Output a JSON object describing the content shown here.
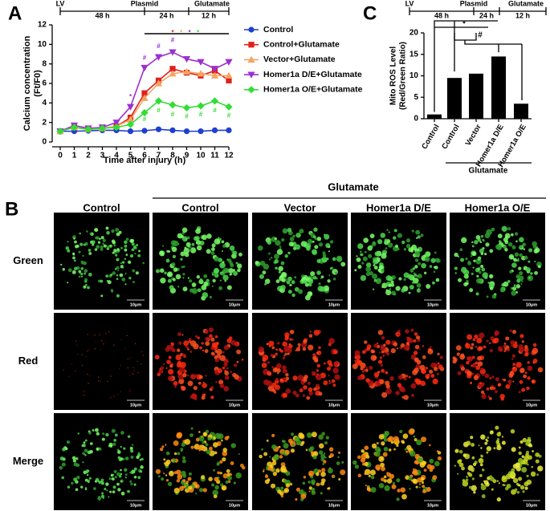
{
  "panel_labels": [
    "A",
    "B",
    "C"
  ],
  "chart_data": [
    {
      "type": "line",
      "timeline": [
        "LV",
        "48 h",
        "Plasmid",
        "24 h",
        "Glutamate",
        "12 h"
      ],
      "xlabel": "Time after injury (h)",
      "ylabel": [
        "Calcium concentration",
        "(Ft/F0)"
      ],
      "x": [
        0,
        1,
        2,
        3,
        4,
        5,
        6,
        7,
        8,
        9,
        10,
        11,
        12
      ],
      "xlim": [
        0,
        12
      ],
      "xticks": [
        0,
        1,
        2,
        3,
        4,
        5,
        6,
        7,
        8,
        9,
        10,
        11,
        12
      ],
      "ylim": [
        0,
        12
      ],
      "yticks": [
        0,
        2,
        4,
        6,
        8,
        10,
        12
      ],
      "series": [
        {
          "name": "Control",
          "color": "#1f3fd0",
          "marker": "circle",
          "values": [
            1.1,
            1.1,
            1.15,
            1.2,
            1.2,
            1.1,
            1.15,
            1.3,
            1.2,
            1.1,
            1.1,
            1.2,
            1.2
          ]
        },
        {
          "name": "Control+Glutamate",
          "color": "#e0201b",
          "marker": "square",
          "values": [
            1.1,
            1.5,
            1.3,
            1.4,
            1.6,
            2.5,
            5.0,
            6.3,
            7.5,
            7.1,
            6.8,
            7.3,
            6.3
          ]
        },
        {
          "name": "Vector+Glutamate",
          "color": "#f4a460",
          "marker": "triangle",
          "values": [
            1.1,
            1.5,
            1.3,
            1.4,
            1.6,
            2.3,
            4.5,
            6.0,
            7.0,
            7.2,
            7.0,
            6.8,
            6.8
          ]
        },
        {
          "name": "Homer1a D/E+Glutamate",
          "color": "#9b30d0",
          "marker": "down-triangle",
          "values": [
            1.1,
            1.7,
            1.4,
            1.5,
            2.0,
            3.6,
            7.6,
            8.7,
            9.2,
            8.5,
            8.2,
            7.5,
            8.2
          ]
        },
        {
          "name": "Homer1a O/E+Glutamate",
          "color": "#33dd33",
          "marker": "diamond",
          "values": [
            1.1,
            1.5,
            1.3,
            1.4,
            1.5,
            1.8,
            3.0,
            4.2,
            3.8,
            3.5,
            3.7,
            4.2,
            3.6
          ]
        }
      ],
      "annotations": [
        {
          "text": "*",
          "x": 8,
          "y": 11.2,
          "color": "#e0201b"
        },
        {
          "text": "*",
          "x": 8.6,
          "y": 11.2,
          "color": "#f4a460"
        },
        {
          "text": "*",
          "x": 9.2,
          "y": 11.2,
          "color": "#9b30d0"
        },
        {
          "text": "*",
          "x": 9.8,
          "y": 11.2,
          "color": "#33dd33"
        },
        {
          "text": "*",
          "x": 5,
          "y": 4.6,
          "color": "#9b30d0"
        },
        {
          "text": "#",
          "x": 6,
          "y": 8.6,
          "color": "#9b30d0"
        },
        {
          "text": "#",
          "x": 7,
          "y": 9.8,
          "color": "#9b30d0"
        },
        {
          "text": "#",
          "x": 8,
          "y": 10.4,
          "color": "#9b30d0"
        },
        {
          "text": "#",
          "x": 6,
          "y": 2.3,
          "color": "#33dd33"
        },
        {
          "text": "#",
          "x": 7,
          "y": 3.2,
          "color": "#33dd33"
        },
        {
          "text": "#",
          "x": 8,
          "y": 2.8,
          "color": "#33dd33"
        },
        {
          "text": "#",
          "x": 9,
          "y": 2.6,
          "color": "#33dd33"
        },
        {
          "text": "#",
          "x": 10,
          "y": 2.8,
          "color": "#33dd33"
        },
        {
          "text": "#",
          "x": 11,
          "y": 3.2,
          "color": "#33dd33"
        },
        {
          "text": "#",
          "x": 12,
          "y": 2.7,
          "color": "#33dd33"
        }
      ]
    },
    {
      "type": "bar",
      "timeline": [
        "LV",
        "48 h",
        "Plasmid",
        "24 h",
        "Glutamate",
        "12 h"
      ],
      "ylabel": [
        "Mito ROS Level",
        "(Red/Green Ratio)"
      ],
      "categories": [
        "Control",
        "Control",
        "Vector",
        "Homer1a D/E",
        "Homer1a O/E"
      ],
      "values": [
        1.0,
        9.5,
        10.5,
        14.5,
        3.5
      ],
      "color": "#000000",
      "group_label": "Glutamate",
      "annotations": [
        "*",
        "#"
      ],
      "ylim": [
        0,
        20
      ],
      "yticks": [
        0,
        5,
        10,
        15,
        20
      ]
    }
  ],
  "image_panel": {
    "group_label": "Glutamate",
    "columns": [
      "Control",
      "Control",
      "Vector",
      "Homer1a D/E",
      "Homer1a O/E"
    ],
    "rows": [
      "Green",
      "Red",
      "Merge"
    ],
    "scale_bar": "10μm"
  }
}
